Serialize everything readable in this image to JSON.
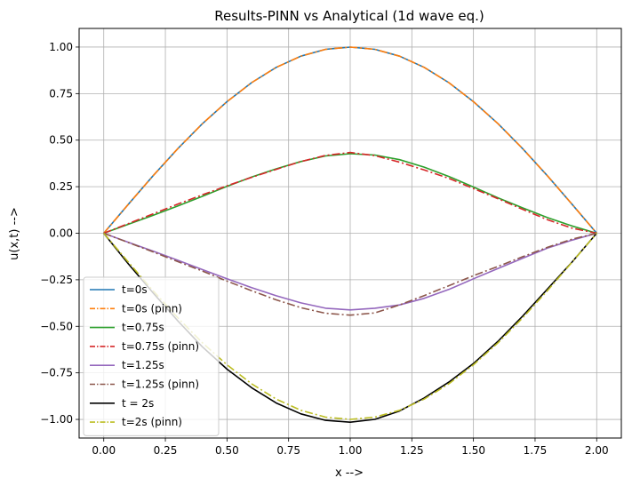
{
  "chart_data": {
    "type": "line",
    "title": "Results-PINN vs Analytical (1d wave eq.)",
    "xlabel": "x -->",
    "ylabel": "u(x,t) -->",
    "xlim": [
      -0.1,
      2.1
    ],
    "ylim": [
      -1.1,
      1.1
    ],
    "xticks": [
      0.0,
      0.25,
      0.5,
      0.75,
      1.0,
      1.25,
      1.5,
      1.75,
      2.0
    ],
    "xtick_labels": [
      "0.00",
      "0.25",
      "0.50",
      "0.75",
      "1.00",
      "1.25",
      "1.50",
      "1.75",
      "2.00"
    ],
    "yticks": [
      -1.0,
      -0.75,
      -0.5,
      -0.25,
      0.0,
      0.25,
      0.5,
      0.75,
      1.0
    ],
    "ytick_labels": [
      "−1.00",
      "−0.75",
      "−0.50",
      "−0.25",
      "0.00",
      "0.25",
      "0.50",
      "0.75",
      "1.00"
    ],
    "grid": true,
    "legend_position": "bottom-left",
    "x": [
      0.0,
      0.1,
      0.2,
      0.3,
      0.4,
      0.5,
      0.6,
      0.7,
      0.8,
      0.9,
      1.0,
      1.1,
      1.2,
      1.3,
      1.4,
      1.5,
      1.6,
      1.7,
      1.8,
      1.9,
      2.0
    ],
    "series": [
      {
        "name": "t=0s",
        "color": "#1f77b4",
        "style": "solid",
        "values": [
          0.0,
          0.156,
          0.309,
          0.454,
          0.588,
          0.707,
          0.809,
          0.891,
          0.951,
          0.988,
          1.0,
          0.988,
          0.951,
          0.891,
          0.809,
          0.707,
          0.588,
          0.454,
          0.309,
          0.156,
          0.0
        ]
      },
      {
        "name": "t=0s (pinn)",
        "color": "#ff7f0e",
        "style": "dashdot",
        "values": [
          0.0,
          0.156,
          0.309,
          0.454,
          0.588,
          0.707,
          0.809,
          0.891,
          0.951,
          0.988,
          1.0,
          0.988,
          0.951,
          0.891,
          0.809,
          0.707,
          0.588,
          0.454,
          0.309,
          0.156,
          0.0
        ]
      },
      {
        "name": "t=0.75s",
        "color": "#2ca02c",
        "style": "solid",
        "values": [
          0.0,
          0.048,
          0.096,
          0.146,
          0.198,
          0.252,
          0.302,
          0.346,
          0.385,
          0.415,
          0.427,
          0.42,
          0.395,
          0.355,
          0.305,
          0.248,
          0.19,
          0.136,
          0.084,
          0.039,
          0.0
        ]
      },
      {
        "name": "t=0.75s (pinn)",
        "color": "#d62728",
        "style": "dashdot",
        "values": [
          0.0,
          0.052,
          0.104,
          0.156,
          0.206,
          0.255,
          0.3,
          0.343,
          0.385,
          0.418,
          0.434,
          0.417,
          0.382,
          0.34,
          0.295,
          0.24,
          0.185,
          0.128,
          0.073,
          0.027,
          0.0
        ]
      },
      {
        "name": "t=1.25s",
        "color": "#9467bd",
        "style": "solid",
        "values": [
          0.0,
          -0.049,
          -0.096,
          -0.145,
          -0.195,
          -0.245,
          -0.292,
          -0.336,
          -0.374,
          -0.403,
          -0.412,
          -0.403,
          -0.385,
          -0.35,
          -0.302,
          -0.245,
          -0.189,
          -0.134,
          -0.08,
          -0.037,
          0.0
        ]
      },
      {
        "name": "t=1.25s (pinn)",
        "color": "#8c564b",
        "style": "dashdot",
        "values": [
          0.0,
          -0.05,
          -0.1,
          -0.152,
          -0.203,
          -0.257,
          -0.309,
          -0.358,
          -0.4,
          -0.43,
          -0.44,
          -0.428,
          -0.385,
          -0.335,
          -0.282,
          -0.228,
          -0.178,
          -0.126,
          -0.076,
          -0.032,
          0.0
        ]
      },
      {
        "name": "t = 2s",
        "color": "#000000",
        "style": "solid",
        "values": [
          0.0,
          -0.165,
          -0.32,
          -0.47,
          -0.61,
          -0.73,
          -0.83,
          -0.912,
          -0.97,
          -1.005,
          -1.015,
          -1.0,
          -0.955,
          -0.885,
          -0.8,
          -0.7,
          -0.58,
          -0.445,
          -0.3,
          -0.155,
          0.0
        ]
      },
      {
        "name": "t=2s (pinn)",
        "color": "#bcbd22",
        "style": "dashdot",
        "values": [
          0.0,
          -0.156,
          -0.309,
          -0.454,
          -0.588,
          -0.707,
          -0.809,
          -0.891,
          -0.951,
          -0.988,
          -1.0,
          -0.988,
          -0.951,
          -0.891,
          -0.809,
          -0.707,
          -0.588,
          -0.454,
          -0.309,
          -0.156,
          0.0
        ]
      }
    ]
  }
}
